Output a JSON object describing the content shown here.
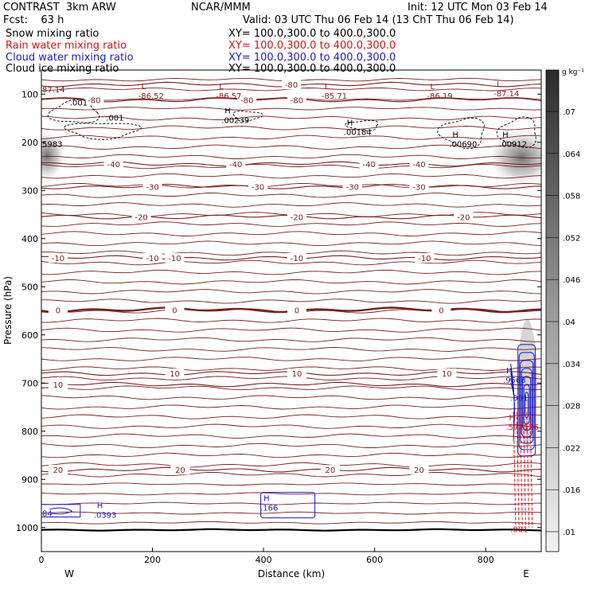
{
  "header": {
    "model": "CONTRAST  3km ARW",
    "center": "NCAR/MMM",
    "init": "Init: 12 UTC Mon 03 Feb 14",
    "fcst": "Fcst:    63 h",
    "valid": "Valid: 03 UTC Thu 06 Feb 14 (13 ChT Thu 06 Feb 14)"
  },
  "fields": [
    {
      "name": "Snow mixing ratio",
      "xy": "XY= 100.0,300.0 to 400.0,300.0",
      "color": "#000000"
    },
    {
      "name": "Rain water mixing ratio",
      "xy": "XY= 100.0,300.0 to 400.0,300.0",
      "color": "#e01010"
    },
    {
      "name": "Cloud water mixing ratio",
      "xy": "XY= 100.0,300.0 to 400.0,300.0",
      "color": "#1a1acc"
    },
    {
      "name": "Cloud ice mixing ratio",
      "xy": "XY= 100.0,300.0 to 400.0,300.0",
      "color": "#000000"
    }
  ],
  "chart_data": {
    "type": "contour",
    "xlabel": "Distance (km)",
    "ylabel": "Pressure (hPa)",
    "xlim": [
      0,
      900
    ],
    "ylim": [
      1050,
      50
    ],
    "x_ticks": [
      0,
      200,
      400,
      600,
      800
    ],
    "y_ticks": [
      100,
      200,
      300,
      400,
      500,
      600,
      700,
      800,
      900,
      1000
    ],
    "end_labels": {
      "left": "W",
      "right": "E"
    },
    "colorbar": {
      "unit": "g kg⁻¹",
      "ticks": [
        ".07",
        ".064",
        ".058",
        ".052",
        ".046",
        ".04",
        ".034",
        ".028",
        ".022",
        ".016",
        ".01"
      ],
      "values": [
        0.07,
        0.064,
        0.058,
        0.052,
        0.046,
        0.04,
        0.034,
        0.028,
        0.022,
        0.016,
        0.01
      ]
    },
    "temperature_contours": [
      {
        "level": "-80",
        "p": 80,
        "labels": [
          {
            "x": 450,
            "text": "-80"
          }
        ]
      },
      {
        "level": "-80",
        "p": 112,
        "labels": [
          {
            "x": 95,
            "text": "-80"
          },
          {
            "x": 370,
            "text": "-80"
          },
          {
            "x": 460,
            "text": "-80"
          }
        ]
      },
      {
        "level": "-40",
        "p": 245,
        "labels": [
          {
            "x": 130,
            "text": "-40"
          },
          {
            "x": 350,
            "text": "-40"
          },
          {
            "x": 590,
            "text": "-40"
          },
          {
            "x": 680,
            "text": "-40"
          }
        ]
      },
      {
        "level": "-30",
        "p": 292,
        "labels": [
          {
            "x": 200,
            "text": "-30"
          },
          {
            "x": 390,
            "text": "-30"
          },
          {
            "x": 560,
            "text": "-30"
          },
          {
            "x": 680,
            "text": "-30"
          }
        ]
      },
      {
        "level": "-20",
        "p": 355,
        "labels": [
          {
            "x": 180,
            "text": "-20"
          },
          {
            "x": 460,
            "text": "-20"
          },
          {
            "x": 760,
            "text": "-20"
          }
        ]
      },
      {
        "level": "-10",
        "p": 440,
        "labels": [
          {
            "x": 30,
            "text": "-10"
          },
          {
            "x": 200,
            "text": "-10"
          },
          {
            "x": 240,
            "text": "-10"
          },
          {
            "x": 460,
            "text": "-10"
          },
          {
            "x": 690,
            "text": "-10"
          }
        ]
      },
      {
        "level": "0",
        "p": 548,
        "labels": [
          {
            "x": 30,
            "text": "0"
          },
          {
            "x": 240,
            "text": "0"
          },
          {
            "x": 460,
            "text": "0"
          },
          {
            "x": 720,
            "text": "0"
          }
        ]
      },
      {
        "level": "10",
        "p": 680,
        "labels": [
          {
            "x": 240,
            "text": "10"
          },
          {
            "x": 460,
            "text": "10"
          },
          {
            "x": 730,
            "text": "10"
          }
        ]
      },
      {
        "level": "10",
        "p": 703,
        "labels": [
          {
            "x": 30,
            "text": "10"
          }
        ]
      },
      {
        "level": "20",
        "p": 880,
        "labels": [
          {
            "x": 30,
            "text": "20"
          },
          {
            "x": 250,
            "text": "20"
          },
          {
            "x": 520,
            "text": "20"
          },
          {
            "x": 680,
            "text": "20"
          }
        ]
      }
    ],
    "extrema": [
      {
        "kind": "L",
        "x": 180,
        "p": 90,
        "value": "-86.52",
        "color": "#8b1a1a"
      },
      {
        "kind": "L",
        "x": 320,
        "p": 90,
        "value": "-86.57",
        "color": "#8b1a1a"
      },
      {
        "kind": "L",
        "x": 510,
        "p": 90,
        "value": "-85.71",
        "color": "#8b1a1a"
      },
      {
        "kind": "L",
        "x": 700,
        "p": 90,
        "value": "-86.19",
        "color": "#8b1a1a"
      },
      {
        "kind": "L",
        "x": 820,
        "p": 85,
        "value": "-87.14",
        "color": "#8b1a1a"
      },
      {
        "kind": "H",
        "x": 330,
        "p": 140,
        "value": ".00239",
        "color": "#000000"
      },
      {
        "kind": "H",
        "x": 550,
        "p": 165,
        "value": ".00184",
        "color": "#000000"
      },
      {
        "kind": "H",
        "x": 740,
        "p": 190,
        "value": ".00690",
        "color": "#000000"
      },
      {
        "kind": "H",
        "x": 830,
        "p": 190,
        "value": ".00912",
        "color": "#000000"
      },
      {
        "kind": "H",
        "x": 837,
        "p": 680,
        "value": ".9568",
        "color": "#1a1acc"
      },
      {
        "kind": "H",
        "x": 842,
        "p": 777,
        "value": ".572126",
        "color": "#e01010"
      },
      {
        "kind": "H",
        "x": 100,
        "p": 960,
        "value": ".0393",
        "color": "#1a1acc"
      },
      {
        "kind": "H",
        "x": 400,
        "p": 945,
        "value": ".166",
        "color": "#1a1acc"
      }
    ],
    "edge_labels": [
      {
        "x": 0,
        "p": 90,
        "text": "87.14",
        "color": "#8b1a1a"
      },
      {
        "x": 0,
        "p": 203,
        "text": "5983",
        "color": "#000000"
      },
      {
        "x": 50,
        "p": 117,
        "text": ".001",
        "color": "#000000"
      },
      {
        "x": 115,
        "p": 148,
        "text": ".001",
        "color": "#000000"
      },
      {
        "x": 0,
        "p": 970,
        "text": "84",
        "color": "#1a1acc"
      },
      {
        "x": 843,
        "p": 730,
        "text": ".001",
        "color": "#1a1acc"
      },
      {
        "x": 843,
        "p": 1003,
        "text": ".001",
        "color": "#e01010"
      }
    ]
  }
}
